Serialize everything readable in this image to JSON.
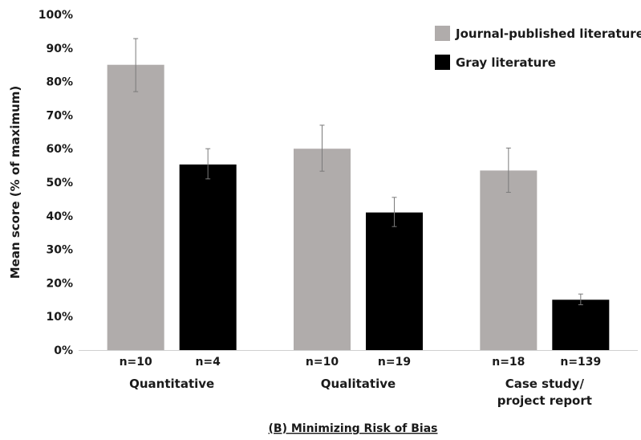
{
  "chart_data": {
    "type": "bar",
    "ylabel": "Mean score (% of maximum)",
    "xlabel": "",
    "ylim": [
      0,
      100
    ],
    "yticks": [
      "0%",
      "10%",
      "20%",
      "30%",
      "40%",
      "50%",
      "60%",
      "70%",
      "80%",
      "90%",
      "100%"
    ],
    "grid": false,
    "legend_position": "top-right",
    "categories": [
      "Quantitative",
      "Qualitative",
      "Case study/\nproject report"
    ],
    "series": [
      {
        "name": "Journal-published literature",
        "color": "#b0acab",
        "values": [
          85,
          60,
          53.5
        ],
        "err_low": [
          77,
          53.3,
          47
        ],
        "err_high": [
          92.8,
          67,
          60.2
        ],
        "n_labels": [
          "n=10",
          "n=10",
          "n=18"
        ]
      },
      {
        "name": "Gray literature",
        "color": "#000000",
        "values": [
          55.3,
          41,
          15
        ],
        "err_low": [
          51,
          36.8,
          13.5
        ],
        "err_high": [
          60,
          45.5,
          16.7
        ],
        "n_labels": [
          "n=4",
          "n=19",
          "n=139"
        ]
      }
    ],
    "caption": "(B) Minimizing Risk of Bias"
  }
}
